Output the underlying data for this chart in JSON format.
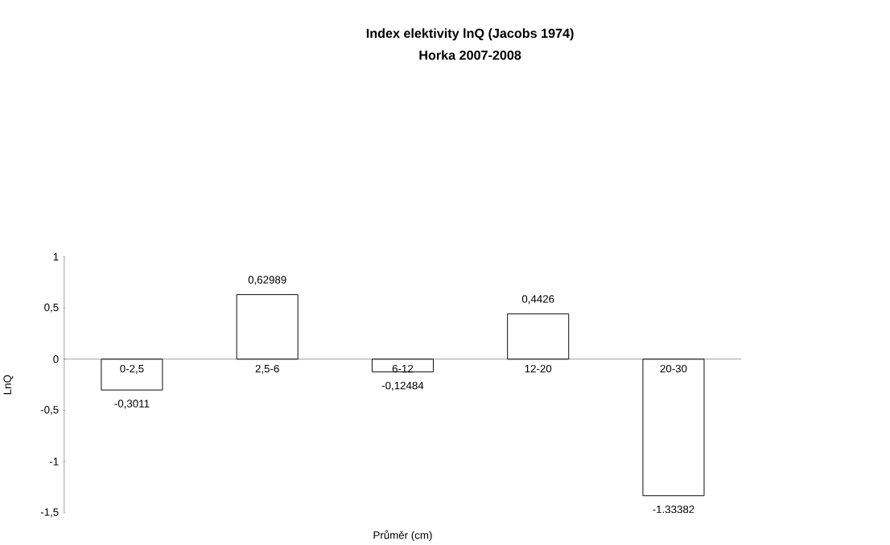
{
  "chart_data": {
    "type": "bar",
    "title": "Index elektivity lnQ (Jacobs 1974)",
    "subtitle": "Horka 2007-2008",
    "xlabel": "Průměr (cm)",
    "ylabel": "LnQ",
    "categories": [
      "0-2,5",
      "2,5-6",
      "6-12",
      "12-20",
      "20-30"
    ],
    "values": [
      -0.3011,
      0.62989,
      -0.12484,
      0.4426,
      -1.33382
    ],
    "value_labels": [
      "-0,3011",
      "0,62989",
      "-0,12484",
      "0,4426",
      "-1,33382"
    ],
    "color": "#ffffff",
    "ylim": [
      -1.5,
      1
    ],
    "yticks": [
      {
        "value": -1.5,
        "label": "-1,5"
      },
      -1,
      {
        "value": -0.5,
        "label": "-0,5"
      },
      0,
      {
        "value": 0.5,
        "label": "0,5"
      },
      1
    ]
  }
}
